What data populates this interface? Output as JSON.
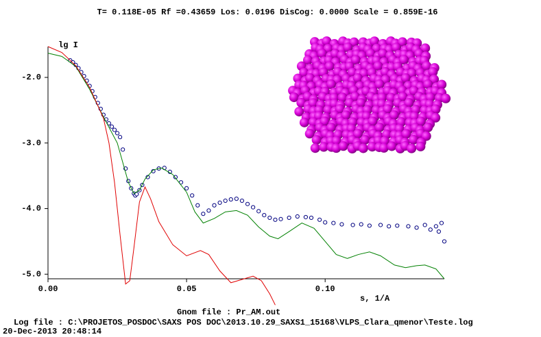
{
  "chart_data": {
    "type": "line",
    "title": "T= 0.118E-05 Rf =0.43659  Los: 0.0196 DisCog: 0.0000 Scale =  0.859E-16",
    "y_label": "lg I",
    "x_label": "s, 1/A",
    "annotations": [
      "Gnom file :  Pr_AM.out",
      "Log file :  C:\\PROJETOS_POSDOC\\SAXS POS DOC\\2013.10.29_SAXS1_15168\\VLPS_Clara_qmenor\\Teste.log",
      "20-Dec-2013    20:48:14"
    ],
    "xlim": [
      0,
      0.143
    ],
    "ylim": [
      -5.07,
      -1.53
    ],
    "xticks": [
      {
        "value": 0,
        "label": "0.00"
      },
      {
        "value": 0.05,
        "label": "0.05"
      },
      {
        "value": 0.1,
        "label": "0.10"
      }
    ],
    "yticks": [
      {
        "value": -2,
        "label": "-2.0"
      },
      {
        "value": -3,
        "label": "-3.0"
      },
      {
        "value": -4,
        "label": "-4.0"
      },
      {
        "value": -5,
        "label": "-5.0"
      }
    ],
    "series": [
      {
        "marker": "circle",
        "color": "#000080",
        "x": [
          0.008,
          0.009,
          0.01,
          0.011,
          0.012,
          0.013,
          0.014,
          0.015,
          0.016,
          0.017,
          0.018,
          0.019,
          0.02,
          0.021,
          0.022,
          0.023,
          0.024,
          0.025,
          0.026,
          0.027,
          0.028,
          0.029,
          0.03,
          0.031,
          0.0315,
          0.032,
          0.033,
          0.034,
          0.036,
          0.038,
          0.04,
          0.042,
          0.044,
          0.046,
          0.048,
          0.05,
          0.052,
          0.054,
          0.056,
          0.058,
          0.06,
          0.062,
          0.064,
          0.066,
          0.068,
          0.07,
          0.072,
          0.074,
          0.076,
          0.078,
          0.08,
          0.082,
          0.084,
          0.087,
          0.09,
          0.093,
          0.095,
          0.098,
          0.1,
          0.103,
          0.106,
          0.11,
          0.113,
          0.116,
          0.12,
          0.123,
          0.126,
          0.13,
          0.133,
          0.136,
          0.138,
          0.14,
          0.141,
          0.142,
          0.143
        ],
        "values": [
          -1.74,
          -1.77,
          -1.81,
          -1.86,
          -1.92,
          -1.98,
          -2.05,
          -2.13,
          -2.21,
          -2.3,
          -2.39,
          -2.48,
          -2.57,
          -2.64,
          -2.7,
          -2.75,
          -2.8,
          -2.85,
          -2.91,
          -3.1,
          -3.39,
          -3.58,
          -3.69,
          -3.77,
          -3.8,
          -3.78,
          -3.72,
          -3.64,
          -3.52,
          -3.43,
          -3.39,
          -3.38,
          -3.44,
          -3.52,
          -3.6,
          -3.69,
          -3.8,
          -3.95,
          -4.08,
          -4.03,
          -3.95,
          -3.91,
          -3.88,
          -3.86,
          -3.85,
          -3.88,
          -3.93,
          -3.98,
          -4.04,
          -4.1,
          -4.14,
          -4.17,
          -4.16,
          -4.14,
          -4.12,
          -4.13,
          -4.14,
          -4.17,
          -4.21,
          -4.22,
          -4.24,
          -4.25,
          -4.24,
          -4.26,
          -4.25,
          -4.27,
          -4.26,
          -4.27,
          -4.29,
          -4.25,
          -4.32,
          -4.27,
          -4.35,
          -4.22,
          -4.5
        ]
      },
      {
        "marker": "line",
        "color": "#008000",
        "x": [
          0,
          0.005,
          0.01,
          0.015,
          0.02,
          0.025,
          0.027,
          0.029,
          0.031,
          0.033,
          0.035,
          0.038,
          0.041,
          0.045,
          0.05,
          0.053,
          0.056,
          0.06,
          0.064,
          0.068,
          0.072,
          0.076,
          0.08,
          0.083,
          0.087,
          0.0916,
          0.096,
          0.1,
          0.104,
          0.108,
          0.112,
          0.116,
          0.12,
          0.125,
          0.129,
          0.133,
          0.136,
          0.14,
          0.143
        ],
        "values": [
          -1.63,
          -1.68,
          -1.83,
          -2.18,
          -2.6,
          -3.0,
          -3.3,
          -3.6,
          -3.77,
          -3.72,
          -3.55,
          -3.41,
          -3.38,
          -3.48,
          -3.75,
          -4.05,
          -4.22,
          -4.15,
          -4.05,
          -4.03,
          -4.1,
          -4.28,
          -4.42,
          -4.46,
          -4.35,
          -4.22,
          -4.3,
          -4.5,
          -4.7,
          -4.76,
          -4.7,
          -4.66,
          -4.72,
          -4.86,
          -4.9,
          -4.87,
          -4.86,
          -4.92,
          -5.07
        ]
      },
      {
        "marker": "line",
        "color": "#e00000",
        "x": [
          0,
          0.005,
          0.01,
          0.015,
          0.02,
          0.022,
          0.024,
          0.026,
          0.028,
          0.0295,
          0.031,
          0.033,
          0.035,
          0.037,
          0.04,
          0.045,
          0.05,
          0.055,
          0.058,
          0.062,
          0.066,
          0.07,
          0.074,
          0.077,
          0.08,
          0.082
        ],
        "values": [
          -1.53,
          -1.62,
          -1.82,
          -2.15,
          -2.62,
          -3.0,
          -3.6,
          -4.4,
          -5.15,
          -5.1,
          -4.6,
          -3.9,
          -3.67,
          -3.85,
          -4.2,
          -4.55,
          -4.72,
          -4.64,
          -4.7,
          -4.95,
          -5.13,
          -5.08,
          -5.03,
          -5.1,
          -5.3,
          -5.47
        ]
      }
    ]
  }
}
